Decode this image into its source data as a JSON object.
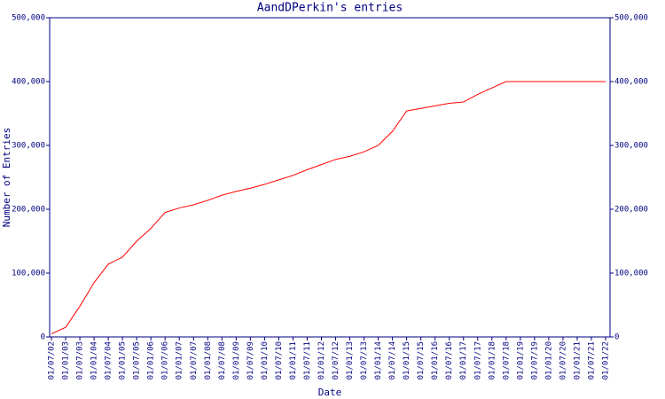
{
  "chart_data": {
    "type": "line",
    "title": "AandDPerkin's entries",
    "x_label": "Date",
    "y_label": "Number of Entries",
    "categories": [
      "01/07/02",
      "01/01/03",
      "01/07/03",
      "01/01/04",
      "01/07/04",
      "01/01/05",
      "01/07/05",
      "01/01/06",
      "01/07/06",
      "01/01/07",
      "01/07/07",
      "01/01/08",
      "01/07/08",
      "01/01/09",
      "01/07/09",
      "01/01/10",
      "01/07/10",
      "01/01/11",
      "01/07/11",
      "01/01/12",
      "01/07/12",
      "01/01/13",
      "01/07/13",
      "01/01/14",
      "01/07/14",
      "01/01/15",
      "01/07/15",
      "01/01/16",
      "01/07/16",
      "01/01/17",
      "01/07/17",
      "01/01/18",
      "01/07/18",
      "01/01/19",
      "01/07/19",
      "01/01/20",
      "01/07/20",
      "01/01/21",
      "01/07/21",
      "01/01/22"
    ],
    "values": [
      5000,
      15000,
      48000,
      85000,
      114000,
      125000,
      150000,
      170000,
      195000,
      202000,
      207000,
      214000,
      222000,
      228000,
      233000,
      239000,
      246000,
      253000,
      262000,
      270000,
      278000,
      283000,
      290000,
      300000,
      322000,
      354000,
      358000,
      362000,
      366000,
      368000,
      380000,
      390000,
      400000,
      400000,
      400000,
      400000,
      400000,
      400000,
      400000,
      400000
    ],
    "color": "#ff0000",
    "axis_color": "#000080",
    "ylim": [
      0,
      500000
    ],
    "yticks": [
      0,
      {
        "value": 100000,
        "label": "100,000"
      },
      {
        "value": 200000,
        "label": "200,000"
      },
      {
        "value": 300000,
        "label": "300,000"
      },
      {
        "value": 400000,
        "label": "400,000"
      },
      {
        "value": 500000,
        "label": "500,000"
      }
    ],
    "y2lim": [
      0,
      500000
    ],
    "y2ticks": [
      0,
      {
        "value": 100000,
        "label": "100,000"
      },
      {
        "value": 200000,
        "label": "200,000"
      },
      {
        "value": 300000,
        "label": "300,000"
      },
      {
        "value": 400000,
        "label": "400,000"
      },
      {
        "value": 500000,
        "label": "500,000"
      }
    ],
    "grid": false
  }
}
